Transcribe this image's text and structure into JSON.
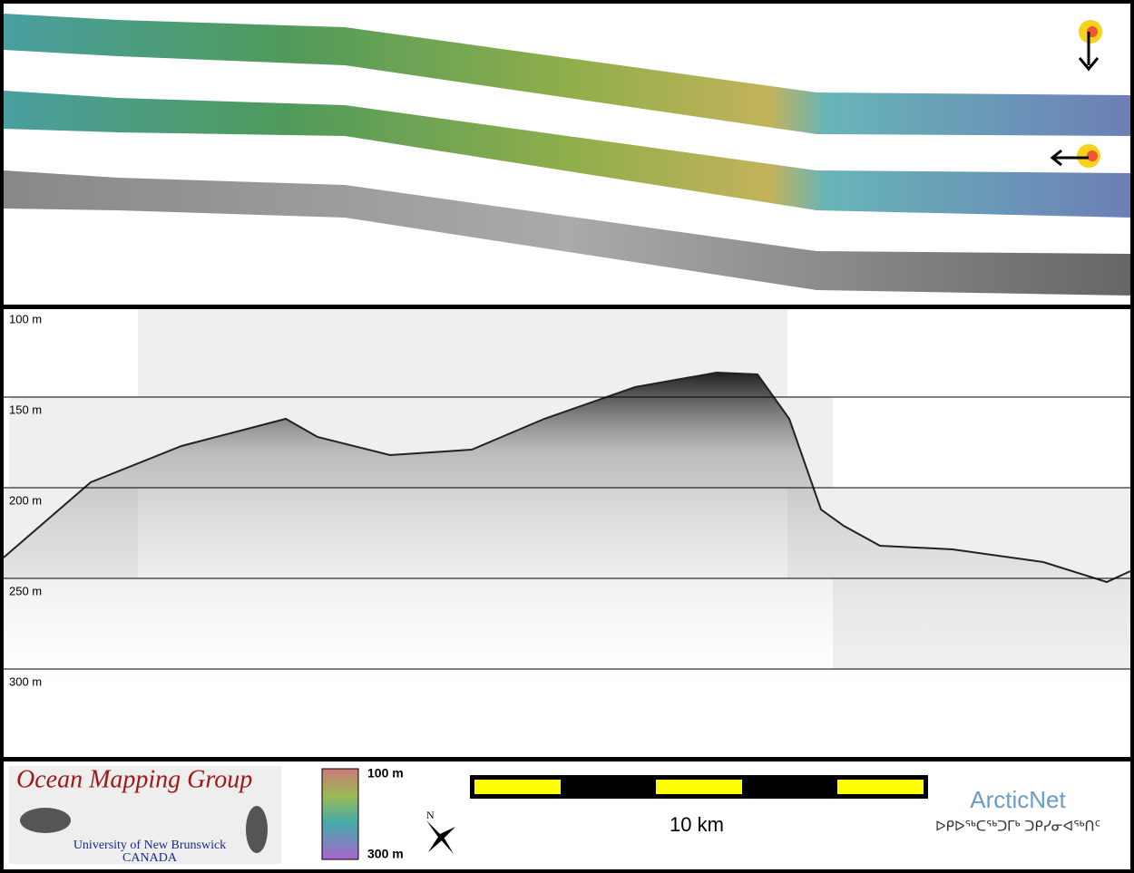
{
  "depth_labels": [
    "100 m",
    "150 m",
    "200 m",
    "250 m",
    "300 m"
  ],
  "logo": {
    "title": "Ocean Mapping Group",
    "line1": "University of New Brunswick",
    "line2": "CANADA"
  },
  "colorbar": {
    "top": "100 m",
    "bottom": "300 m"
  },
  "north": "N",
  "scale_bar": "10 km",
  "partner": {
    "name": "ArcticNet",
    "subtitle": "ᐅᑭᐅᖅᑕᖅᑐᒥᒃ ᑐᑭᓯᓂᐊᖅᑎᑦ"
  }
}
